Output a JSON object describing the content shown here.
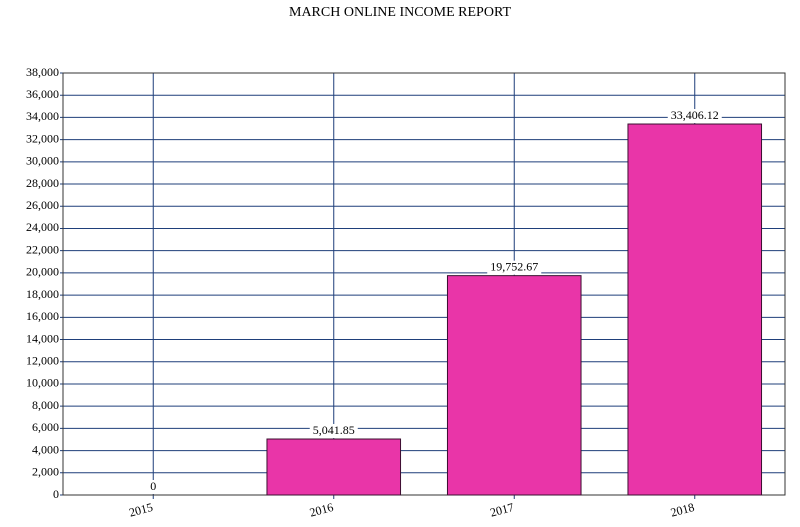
{
  "chart_data": {
    "type": "bar",
    "title": "MARCH ONLINE INCOME REPORT",
    "categories": [
      "2015",
      "2016",
      "2017",
      "2018"
    ],
    "values": [
      0,
      5041.85,
      19752.67,
      33406.12
    ],
    "value_labels": [
      "0",
      "5,041.85",
      "19,752.67",
      "33,406.12"
    ],
    "color": "#e935a8",
    "ylim": [
      0,
      38000
    ],
    "yticks": [
      0,
      {
        "value": 2000,
        "label": "2,000"
      },
      {
        "value": 4000,
        "label": "4,000"
      },
      {
        "value": 6000,
        "label": "6,000"
      },
      {
        "value": 8000,
        "label": "8,000"
      },
      {
        "value": 10000,
        "label": "10,000"
      },
      {
        "value": 12000,
        "label": "12,000"
      },
      {
        "value": 14000,
        "label": "14,000"
      },
      {
        "value": 16000,
        "label": "16,000"
      },
      {
        "value": 18000,
        "label": "18,000"
      },
      {
        "value": 20000,
        "label": "20,000"
      },
      {
        "value": 22000,
        "label": "22,000"
      },
      {
        "value": 24000,
        "label": "24,000"
      },
      {
        "value": 26000,
        "label": "26,000"
      },
      {
        "value": 28000,
        "label": "28,000"
      },
      {
        "value": 30000,
        "label": "30,000"
      },
      {
        "value": 32000,
        "label": "32,000"
      },
      {
        "value": 34000,
        "label": "34,000"
      },
      {
        "value": 36000,
        "label": "36,000"
      },
      {
        "value": 38000,
        "label": "38,000"
      }
    ],
    "grid": true
  }
}
